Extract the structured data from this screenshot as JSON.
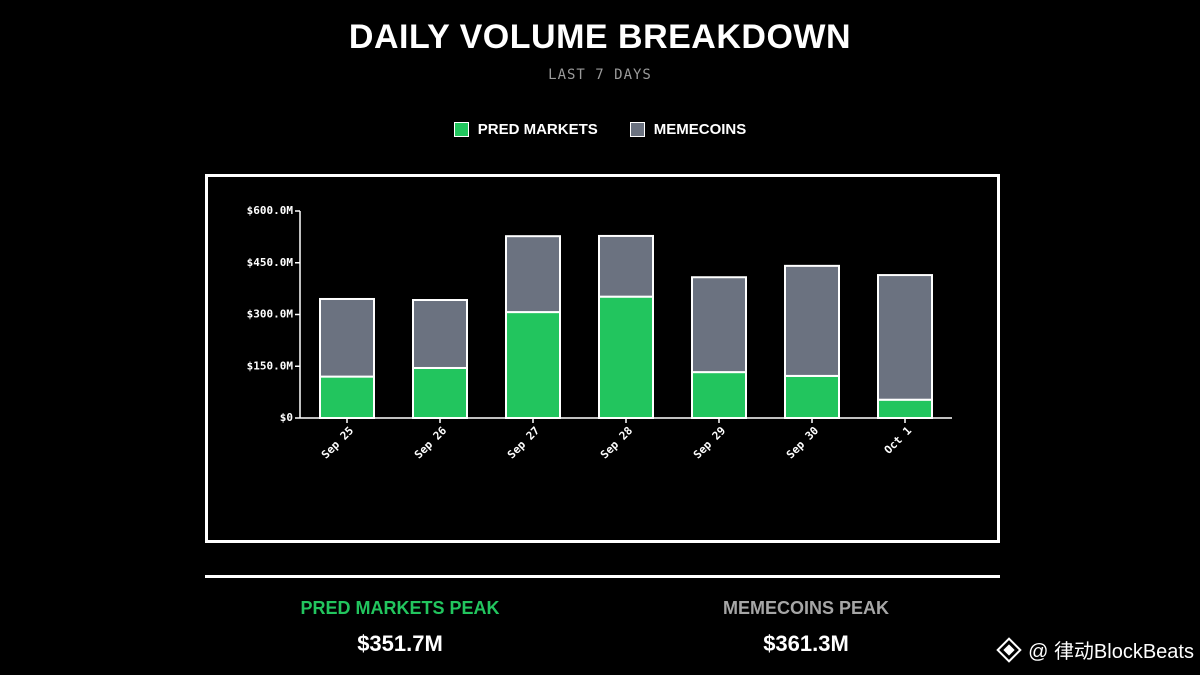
{
  "chart_data": {
    "type": "bar",
    "stacked": true,
    "title": "DAILY VOLUME BREAKDOWN",
    "subtitle": "LAST 7 DAYS",
    "categories": [
      "Sep 25",
      "Sep 26",
      "Sep 27",
      "Sep 28",
      "Sep 29",
      "Sep 30",
      "Oct 1"
    ],
    "series": [
      {
        "name": "PRED MARKETS",
        "color": "#22c55e",
        "values": [
          120,
          145,
          307,
          351.7,
          133,
          122,
          53
        ]
      },
      {
        "name": "MEMECOINS",
        "color": "#6b7280",
        "values": [
          225,
          197,
          220,
          176,
          275,
          319,
          361.3
        ]
      }
    ],
    "unit": "$M",
    "ylim": [
      0,
      600
    ],
    "yticks": [
      0,
      150,
      300,
      450,
      600
    ],
    "ytick_labels": [
      "$0",
      "$150.0M",
      "$300.0M",
      "$450.0M",
      "$600.0M"
    ],
    "xlabel": "",
    "ylabel": "",
    "grid": false,
    "legend_position": "top-center"
  },
  "stats": {
    "pred_label": "PRED MARKETS PEAK",
    "pred_value": "$351.7M",
    "pred_color": "#22c55e",
    "meme_label": "MEMECOINS PEAK",
    "meme_value": "$361.3M",
    "meme_color": "#a6a6a6"
  },
  "watermark": {
    "icon": "diamond-logo-icon",
    "text": "@ 律动BlockBeats"
  }
}
